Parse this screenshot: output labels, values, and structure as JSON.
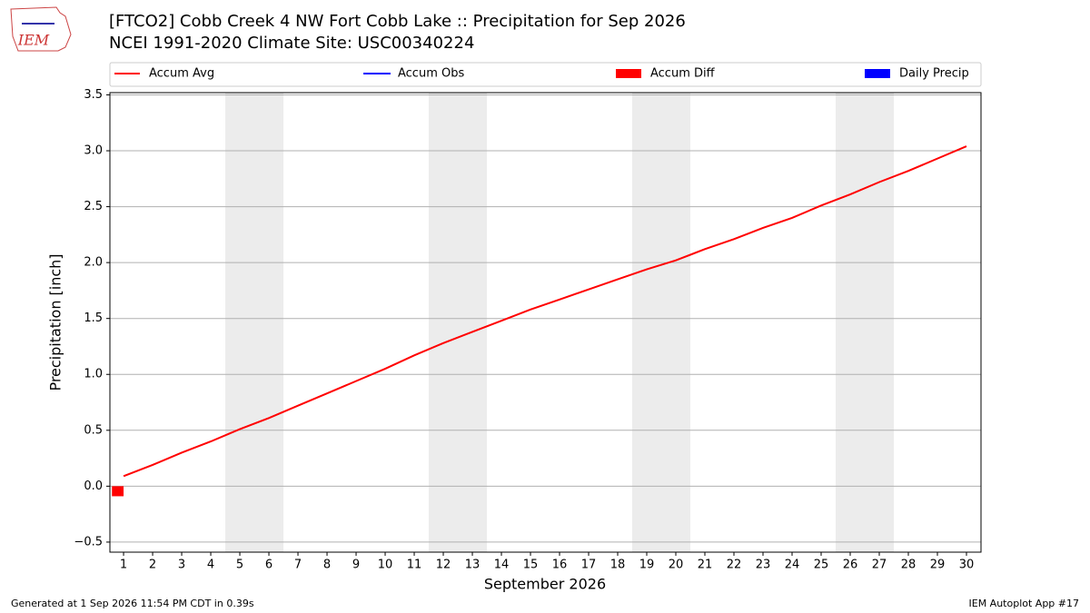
{
  "chart_data": {
    "type": "line",
    "title": "[FTCO2] Cobb Creek 4 NW Fort Cobb Lake :: Precipitation for Sep 2026",
    "subtitle": "NCEI 1991-2020 Climate Site: USC00340224",
    "logo_text": "IEM",
    "x_label": "September 2026",
    "y_label": "Precipitation [inch]",
    "x": [
      1,
      2,
      3,
      4,
      5,
      6,
      7,
      8,
      9,
      10,
      11,
      12,
      13,
      14,
      15,
      16,
      17,
      18,
      19,
      20,
      21,
      22,
      23,
      24,
      25,
      26,
      27,
      28,
      29,
      30
    ],
    "xlim": [
      0.53,
      30.5
    ],
    "xticks": [
      1,
      2,
      3,
      4,
      5,
      6,
      7,
      8,
      9,
      10,
      11,
      12,
      13,
      14,
      15,
      16,
      17,
      18,
      19,
      20,
      21,
      22,
      23,
      24,
      25,
      26,
      27,
      28,
      29,
      30
    ],
    "ylim": [
      -0.59,
      3.52
    ],
    "yticks": [
      {
        "value": -0.5,
        "label": "−0.5"
      },
      {
        "value": 0,
        "label": "0.0"
      },
      {
        "value": 0.5,
        "label": "0.5"
      },
      {
        "value": 1,
        "label": "1.0"
      },
      {
        "value": 1.5,
        "label": "1.5"
      },
      {
        "value": 2,
        "label": "2.0"
      },
      {
        "value": 2.5,
        "label": "2.5"
      },
      {
        "value": 3,
        "label": "3.0"
      },
      {
        "value": 3.5,
        "label": "3.5"
      }
    ],
    "grid": true,
    "shaded_days": [
      5,
      6,
      12,
      13,
      19,
      20,
      26,
      27
    ],
    "series": [
      {
        "name": "Accum Avg",
        "kind": "line",
        "color": "#ff0000",
        "values": [
          0.09,
          0.19,
          0.3,
          0.4,
          0.51,
          0.61,
          0.72,
          0.83,
          0.94,
          1.05,
          1.17,
          1.28,
          1.38,
          1.48,
          1.58,
          1.67,
          1.76,
          1.85,
          1.94,
          2.02,
          2.12,
          2.21,
          2.31,
          2.4,
          2.51,
          2.61,
          2.72,
          2.82,
          2.93,
          3.04
        ]
      },
      {
        "name": "Accum Obs",
        "kind": "line",
        "color": "#0000ff"
      },
      {
        "name": "Accum Diff",
        "kind": "bar",
        "color": "#ff0000",
        "values": [
          -0.09,
          null,
          null,
          null,
          null,
          null,
          null,
          null,
          null,
          null,
          null,
          null,
          null,
          null,
          null,
          null,
          null,
          null,
          null,
          null,
          null,
          null,
          null,
          null,
          null,
          null,
          null,
          null,
          null,
          null
        ]
      },
      {
        "name": "Daily Precip",
        "kind": "bar",
        "color": "#0000ff"
      }
    ],
    "footer_left": "Generated at 1 Sep 2026 11:54 PM CDT in 0.39s",
    "footer_right": "IEM Autoplot App #17"
  }
}
